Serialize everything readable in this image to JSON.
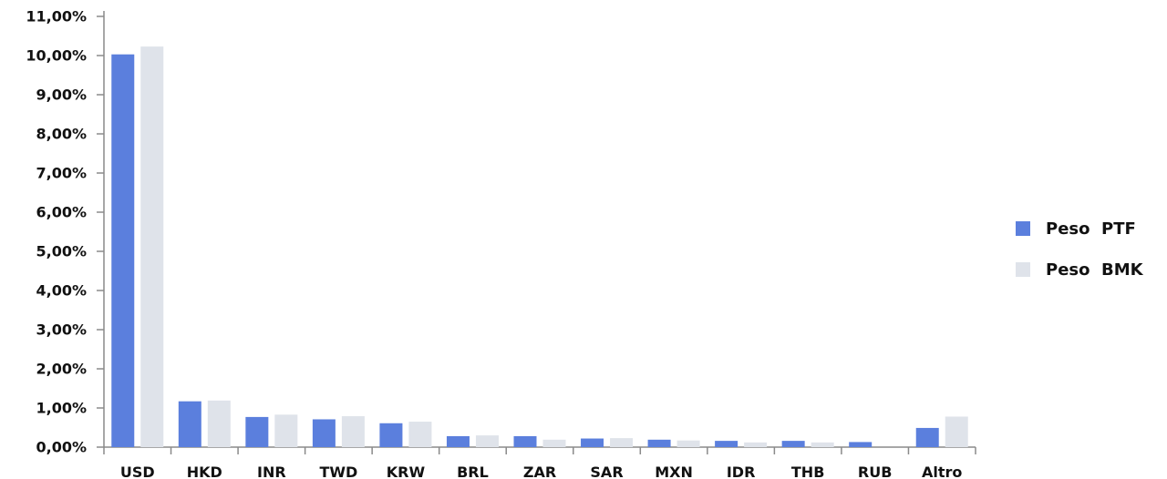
{
  "chart_data": {
    "type": "bar",
    "categories": [
      "USD",
      "HKD",
      "INR",
      "TWD",
      "KRW",
      "BRL",
      "ZAR",
      "SAR",
      "MXN",
      "IDR",
      "THB",
      "RUB",
      "Altro"
    ],
    "series": [
      {
        "name": "Peso  PTF",
        "color": "#5b7fdd",
        "values": [
          10.03,
          1.17,
          0.77,
          0.71,
          0.61,
          0.28,
          0.28,
          0.22,
          0.19,
          0.16,
          0.16,
          0.13,
          0.49
        ]
      },
      {
        "name": "Peso  BMK",
        "color": "#dfe3ea",
        "values": [
          10.23,
          1.19,
          0.83,
          0.79,
          0.65,
          0.3,
          0.19,
          0.23,
          0.17,
          0.12,
          0.12,
          0.0,
          0.78
        ]
      }
    ],
    "y_ticks": [
      "0,00%",
      "1,00%",
      "2,00%",
      "3,00%",
      "4,00%",
      "5,00%",
      "6,00%",
      "7,00%",
      "8,00%",
      "9,00%",
      "10,00%",
      "11,00%"
    ],
    "ylim": [
      0,
      11
    ],
    "grid": false,
    "legend_position": "right"
  }
}
